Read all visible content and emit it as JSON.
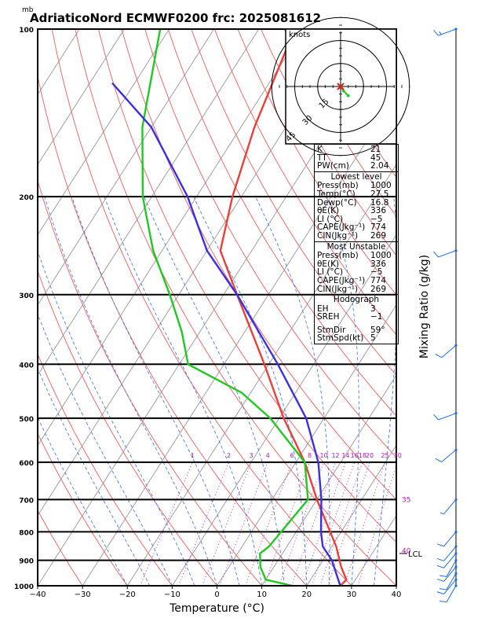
{
  "header": {
    "pressure_unit": "mb",
    "title": "AdriaticoNord ECMWF0200 frc: 2025081612"
  },
  "axes": {
    "xlabel": "Temperature (°C)",
    "right_label": "Mixing Ratio (g/kg)",
    "x_ticks": [
      "−40",
      "−30",
      "−20",
      "−10",
      "0",
      "10",
      "20",
      "30",
      "40"
    ],
    "p_ticks": [
      "100",
      "200",
      "300",
      "400",
      "500",
      "600",
      "700",
      "800",
      "900",
      "1000"
    ],
    "mixing_ratio_labels": [
      "1",
      "2",
      "3",
      "4",
      "6",
      "8",
      "10",
      "12",
      "14",
      "16",
      "18",
      "20",
      "25",
      "30"
    ],
    "theta_e_labels": [
      "35",
      "40"
    ],
    "lcl_label": "LCL"
  },
  "hodograph": {
    "unit_label": "knots",
    "ring_labels": [
      "15",
      "30",
      "45"
    ]
  },
  "indices": {
    "top": [
      {
        "label": "K",
        "value": "21"
      },
      {
        "label": "TT",
        "value": "45"
      },
      {
        "label": "PW(cm)",
        "value": "2.04"
      }
    ],
    "lowest": {
      "title": "Lowest level",
      "rows": [
        {
          "label": "Press(mb)",
          "value": "1000"
        },
        {
          "label": "Temp(°C)",
          "value": "27.5"
        },
        {
          "label": "Dewp(°C)",
          "value": "16.8"
        },
        {
          "label": "θE(K)",
          "value": "336"
        },
        {
          "label": "LI (°C)",
          "value": "−5"
        },
        {
          "label": "CAPE(Jkg⁻¹)",
          "value": "774"
        },
        {
          "label": "CIN(Jkg⁻¹)",
          "value": "269"
        }
      ]
    },
    "unstable": {
      "title": "Most Unstable",
      "rows": [
        {
          "label": "Press(mb)",
          "value": "1000"
        },
        {
          "label": "θE(K)",
          "value": "336"
        },
        {
          "label": "LI (°C)",
          "value": "−5"
        },
        {
          "label": "CAPE(Jkg⁻¹)",
          "value": "774"
        },
        {
          "label": "CIN(Jkg⁻¹)",
          "value": "269"
        }
      ]
    },
    "hodo": {
      "title": "Hodograph",
      "rows": [
        {
          "label": "EH",
          "value": "3"
        },
        {
          "label": "SREH",
          "value": "−1"
        }
      ],
      "rows2": [
        {
          "label": "StmDir",
          "value": "59°"
        },
        {
          "label": "StmSpd(kt)",
          "value": "5"
        }
      ]
    }
  },
  "chart_data": {
    "type": "line",
    "subtype": "skew-T log-P sounding",
    "y_axis": "pressure (mb), log scale",
    "ylim": [
      1000,
      100
    ],
    "xlim": [
      -40,
      40
    ],
    "series": [
      {
        "name": "Temp",
        "color": "#e8403a",
        "points": [
          [
            1000,
            27.5
          ],
          [
            975,
            28
          ],
          [
            925,
            25
          ],
          [
            850,
            21
          ],
          [
            700,
            10
          ],
          [
            600,
            2
          ],
          [
            500,
            -9
          ],
          [
            400,
            -21
          ],
          [
            300,
            -37
          ],
          [
            250,
            -47
          ],
          [
            200,
            -52
          ],
          [
            150,
            -57
          ],
          [
            100,
            -62
          ]
        ]
      },
      {
        "name": "Dewp",
        "color": "#22c822",
        "points": [
          [
            1000,
            16.8
          ],
          [
            975,
            10
          ],
          [
            925,
            7
          ],
          [
            875,
            5
          ],
          [
            850,
            6
          ],
          [
            700,
            8
          ],
          [
            600,
            2
          ],
          [
            500,
            -12
          ],
          [
            450,
            -22
          ],
          [
            400,
            -38
          ],
          [
            350,
            -44
          ],
          [
            300,
            -52
          ],
          [
            250,
            -62
          ],
          [
            200,
            -72
          ],
          [
            150,
            -82
          ],
          [
            100,
            -92
          ]
        ]
      },
      {
        "name": "Parcel",
        "color": "#3c2fe0",
        "points": [
          [
            1000,
            27.5
          ],
          [
            900,
            22
          ],
          [
            850,
            18
          ],
          [
            800,
            15.5
          ],
          [
            700,
            11
          ],
          [
            600,
            5
          ],
          [
            500,
            -4
          ],
          [
            400,
            -18
          ],
          [
            300,
            -37
          ],
          [
            250,
            -50
          ],
          [
            200,
            -62
          ],
          [
            150,
            -80
          ],
          [
            125,
            -95
          ]
        ]
      }
    ],
    "hodograph_points_kt": [
      [
        0,
        0
      ],
      [
        2,
        -3
      ],
      [
        5,
        -6
      ]
    ],
    "wind_barbs": [
      {
        "p": 100,
        "dir": 250,
        "spd": 15
      },
      {
        "p": 250,
        "dir": 250,
        "spd": 10
      },
      {
        "p": 370,
        "dir": 230,
        "spd": 10
      },
      {
        "p": 490,
        "dir": 250,
        "spd": 10
      },
      {
        "p": 570,
        "dir": 230,
        "spd": 10
      },
      {
        "p": 700,
        "dir": 220,
        "spd": 5
      },
      {
        "p": 800,
        "dir": 220,
        "spd": 10
      },
      {
        "p": 850,
        "dir": 220,
        "spd": 10
      },
      {
        "p": 875,
        "dir": 220,
        "spd": 10
      },
      {
        "p": 900,
        "dir": 210,
        "spd": 10
      },
      {
        "p": 925,
        "dir": 220,
        "spd": 10
      },
      {
        "p": 950,
        "dir": 210,
        "spd": 10
      },
      {
        "p": 975,
        "dir": 220,
        "spd": 10
      },
      {
        "p": 1000,
        "dir": 210,
        "spd": 10
      }
    ]
  }
}
